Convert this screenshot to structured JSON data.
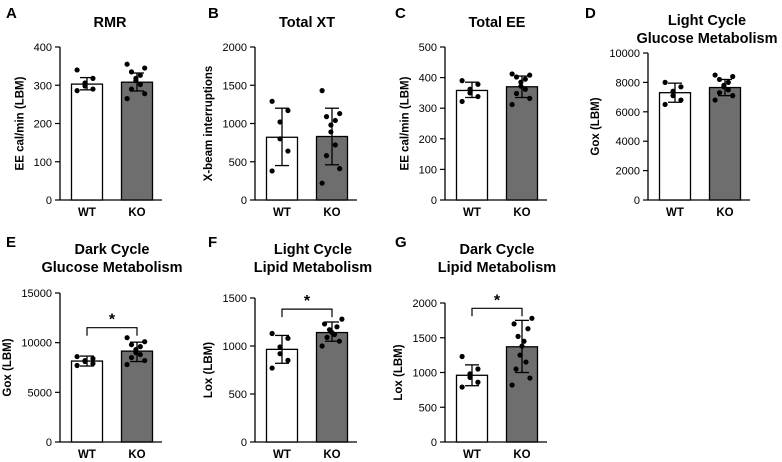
{
  "figure": {
    "description_title": ""
  },
  "colors": {
    "wt_fill": "#ffffff",
    "ko_fill": "#6e6e6e",
    "stroke": "#000000"
  },
  "chart_data": [
    {
      "panel_letter": "A",
      "type": "bar",
      "title": [
        "RMR"
      ],
      "ylabel": "EE cal/min (LBM)",
      "categories": [
        "WT",
        "KO"
      ],
      "ylim": [
        0,
        400
      ],
      "yticks": [
        0,
        100,
        200,
        300,
        400
      ],
      "values": [
        303,
        308
      ],
      "error": [
        [
          288,
          320
        ],
        [
          285,
          332
        ]
      ],
      "points": [
        [
          286,
          290,
          298,
          306,
          318,
          340
        ],
        [
          265,
          278,
          290,
          302,
          312,
          318,
          326,
          335,
          345,
          355
        ]
      ],
      "significance": null
    },
    {
      "panel_letter": "B",
      "type": "bar",
      "title": [
        "Total XT"
      ],
      "ylabel": "X-beam interruptions",
      "categories": [
        "WT",
        "KO"
      ],
      "ylim": [
        0,
        2000
      ],
      "yticks": [
        0,
        500,
        1000,
        1500,
        2000
      ],
      "values": [
        820,
        830
      ],
      "error": [
        [
          450,
          1200
        ],
        [
          460,
          1200
        ]
      ],
      "points": [
        [
          380,
          640,
          800,
          1020,
          1170,
          1290
        ],
        [
          220,
          410,
          580,
          720,
          890,
          980,
          1040,
          1090,
          1130,
          1430
        ]
      ],
      "significance": null
    },
    {
      "panel_letter": "C",
      "type": "bar",
      "title": [
        "Total EE"
      ],
      "ylabel": "EE cal/min (LBM)",
      "categories": [
        "WT",
        "KO"
      ],
      "ylim": [
        0,
        500
      ],
      "yticks": [
        0,
        100,
        200,
        300,
        400,
        500
      ],
      "values": [
        358,
        370
      ],
      "error": [
        [
          335,
          385
        ],
        [
          335,
          405
        ]
      ],
      "points": [
        [
          322,
          338,
          350,
          362,
          378,
          390
        ],
        [
          312,
          332,
          348,
          362,
          372,
          385,
          395,
          402,
          408,
          412
        ]
      ],
      "significance": null
    },
    {
      "panel_letter": "D",
      "type": "bar",
      "title": [
        "Light Cycle",
        "Glucose Metabolism"
      ],
      "ylabel": "Gox (LBM)",
      "categories": [
        "WT",
        "KO"
      ],
      "ylim": [
        0,
        10000
      ],
      "yticks": [
        0,
        2000,
        4000,
        6000,
        8000,
        10000
      ],
      "values": [
        7300,
        7650
      ],
      "error": [
        [
          6650,
          7950
        ],
        [
          7100,
          8200
        ]
      ],
      "points": [
        [
          6500,
          6800,
          7100,
          7400,
          7700,
          8000
        ],
        [
          6800,
          7100,
          7300,
          7500,
          7700,
          7800,
          8000,
          8200,
          8400,
          8500
        ]
      ],
      "significance": null
    },
    {
      "panel_letter": "E",
      "type": "bar",
      "title": [
        "Dark Cycle",
        "Glucose Metabolism"
      ],
      "ylabel": "Gox (LBM)",
      "categories": [
        "WT",
        "KO"
      ],
      "ylim": [
        0,
        15000
      ],
      "yticks": [
        0,
        5000,
        10000,
        15000
      ],
      "values": [
        8150,
        9150
      ],
      "error": [
        [
          7650,
          8650
        ],
        [
          8100,
          10050
        ]
      ],
      "points": [
        [
          7700,
          7900,
          8100,
          8200,
          8400,
          8600
        ],
        [
          7800,
          8200,
          8500,
          8800,
          9000,
          9300,
          9600,
          9800,
          10100,
          10500
        ]
      ],
      "significance": "*"
    },
    {
      "panel_letter": "F",
      "type": "bar",
      "title": [
        "Light Cycle",
        "Lipid Metabolism"
      ],
      "ylabel": "Lox (LBM)",
      "categories": [
        "WT",
        "KO"
      ],
      "ylim": [
        0,
        1500
      ],
      "yticks": [
        0,
        500,
        1000,
        1500
      ],
      "values": [
        965,
        1140
      ],
      "error": [
        [
          820,
          1110
        ],
        [
          1050,
          1250
        ]
      ],
      "points": [
        [
          770,
          850,
          920,
          990,
          1080,
          1130
        ],
        [
          1000,
          1050,
          1090,
          1120,
          1140,
          1170,
          1200,
          1230,
          1280
        ]
      ],
      "significance": "*"
    },
    {
      "panel_letter": "G",
      "type": "bar",
      "title": [
        "Dark Cycle",
        "Lipid Metabolism"
      ],
      "ylabel": "Lox (LBM)",
      "categories": [
        "WT",
        "KO"
      ],
      "ylim": [
        0,
        2000
      ],
      "yticks": [
        0,
        500,
        1000,
        1500,
        2000
      ],
      "values": [
        960,
        1370
      ],
      "error": [
        [
          810,
          1110
        ],
        [
          1000,
          1750
        ]
      ],
      "points": [
        [
          790,
          860,
          930,
          980,
          1050,
          1230
        ],
        [
          820,
          920,
          1050,
          1150,
          1250,
          1380,
          1450,
          1520,
          1630,
          1700,
          1780
        ]
      ],
      "significance": "*"
    }
  ]
}
